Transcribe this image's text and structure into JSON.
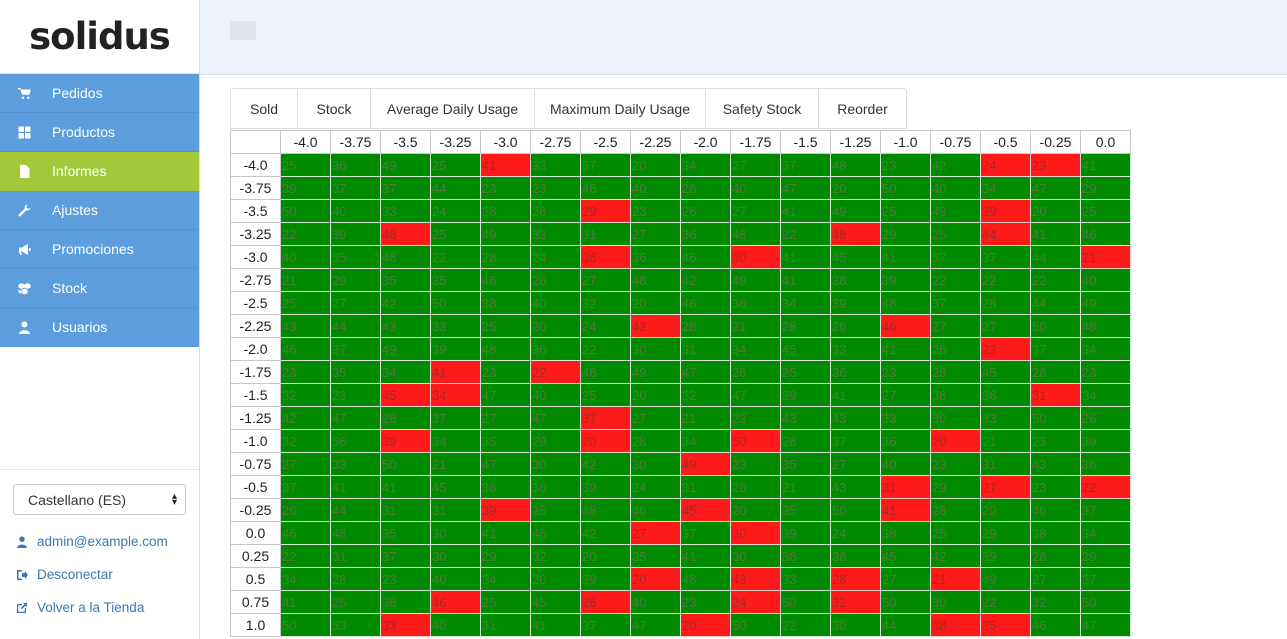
{
  "brand": {
    "logo_text": "solidus"
  },
  "nav": {
    "items": [
      {
        "label": "Pedidos",
        "icon": "cart-icon",
        "active": false
      },
      {
        "label": "Productos",
        "icon": "th-large-icon",
        "active": false
      },
      {
        "label": "Informes",
        "icon": "file-icon",
        "active": true
      },
      {
        "label": "Ajustes",
        "icon": "wrench-icon",
        "active": false
      },
      {
        "label": "Promociones",
        "icon": "bullhorn-icon",
        "active": false
      },
      {
        "label": "Stock",
        "icon": "cubes-icon",
        "active": false
      },
      {
        "label": "Usuarios",
        "icon": "user-icon",
        "active": false
      }
    ]
  },
  "footer": {
    "locale_value": "Castellano (ES)",
    "user_email": "admin@example.com",
    "logout_label": "Desconectar",
    "store_label": "Volver a la Tienda"
  },
  "tabs": [
    "Sold",
    "Stock",
    "Average Daily Usage",
    "Maximum Daily Usage",
    "Safety Stock",
    "Reorder"
  ],
  "colors": {
    "sidebar_blue": "#5b9ddd",
    "active_green": "#a3c93a",
    "cell_green": "#008a00",
    "cell_red": "#ff1a1a"
  },
  "chart_data": {
    "type": "heatmap",
    "columns": [
      "-4.0",
      "-3.75",
      "-3.5",
      "-3.25",
      "-3.0",
      "-2.75",
      "-2.5",
      "-2.25",
      "-2.0",
      "-1.75",
      "-1.5",
      "-1.25",
      "-1.0",
      "-0.75",
      "-0.5",
      "-0.25",
      "0.0"
    ],
    "rows": [
      {
        "label": "-4.0",
        "values": [
          25,
          36,
          49,
          25,
          41,
          33,
          37,
          20,
          34,
          27,
          37,
          48,
          23,
          42,
          24,
          23,
          41
        ],
        "red": [
          4,
          14,
          15
        ]
      },
      {
        "label": "-3.75",
        "values": [
          39,
          37,
          37,
          44,
          23,
          23,
          46,
          40,
          28,
          40,
          47,
          20,
          50,
          40,
          34,
          47,
          29
        ],
        "red": []
      },
      {
        "label": "-3.5",
        "values": [
          50,
          40,
          33,
          24,
          38,
          26,
          29,
          23,
          26,
          27,
          41,
          49,
          25,
          49,
          39,
          20,
          25
        ],
        "red": [
          6,
          14
        ]
      },
      {
        "label": "-3.25",
        "values": [
          22,
          39,
          48,
          25,
          49,
          33,
          31,
          27,
          36,
          48,
          22,
          48,
          29,
          25,
          44,
          41,
          46
        ],
        "red": [
          2,
          11,
          14
        ]
      },
      {
        "label": "-3.0",
        "values": [
          40,
          35,
          48,
          22,
          28,
          24,
          36,
          36,
          46,
          30,
          41,
          45,
          41,
          37,
          37,
          44,
          21
        ],
        "red": [
          6,
          9,
          16
        ]
      },
      {
        "label": "-2.75",
        "values": [
          21,
          29,
          35,
          35,
          46,
          26,
          27,
          48,
          42,
          49,
          41,
          38,
          39,
          22,
          22,
          22,
          40
        ],
        "red": []
      },
      {
        "label": "-2.5",
        "values": [
          25,
          27,
          42,
          50,
          38,
          40,
          32,
          20,
          46,
          36,
          34,
          39,
          48,
          37,
          28,
          44,
          49
        ],
        "red": []
      },
      {
        "label": "-2.25",
        "values": [
          43,
          44,
          43,
          33,
          25,
          30,
          24,
          43,
          28,
          21,
          28,
          26,
          46,
          27,
          27,
          50,
          48
        ],
        "red": [
          7,
          12
        ]
      },
      {
        "label": "-2.0",
        "values": [
          46,
          37,
          49,
          39,
          48,
          36,
          22,
          30,
          31,
          34,
          45,
          33,
          41,
          26,
          23,
          37,
          34
        ],
        "red": [
          14
        ]
      },
      {
        "label": "-1.75",
        "values": [
          23,
          35,
          34,
          41,
          23,
          22,
          48,
          49,
          47,
          26,
          25,
          36,
          33,
          28,
          45,
          28,
          23
        ],
        "red": [
          3,
          5
        ]
      },
      {
        "label": "-1.5",
        "values": [
          32,
          23,
          45,
          34,
          47,
          40,
          25,
          20,
          32,
          47,
          39,
          41,
          27,
          38,
          36,
          31,
          34
        ],
        "red": [
          2,
          3,
          15
        ]
      },
      {
        "label": "-1.25",
        "values": [
          42,
          47,
          28,
          37,
          27,
          47,
          37,
          27,
          21,
          23,
          43,
          43,
          33,
          30,
          33,
          50,
          26
        ],
        "red": [
          6
        ]
      },
      {
        "label": "-1.0",
        "values": [
          32,
          36,
          39,
          34,
          35,
          29,
          20,
          28,
          34,
          50,
          28,
          37,
          36,
          20,
          21,
          23,
          39
        ],
        "red": [
          2,
          6,
          9,
          13
        ]
      },
      {
        "label": "-0.75",
        "values": [
          27,
          33,
          50,
          21,
          47,
          30,
          42,
          30,
          49,
          23,
          35,
          27,
          40,
          23,
          31,
          43,
          36
        ],
        "red": [
          8
        ]
      },
      {
        "label": "-0.5",
        "values": [
          37,
          41,
          41,
          45,
          36,
          36,
          39,
          24,
          31,
          26,
          21,
          43,
          31,
          29,
          27,
          23,
          22
        ],
        "red": [
          12,
          14,
          16
        ]
      },
      {
        "label": "-0.25",
        "values": [
          26,
          44,
          31,
          31,
          39,
          35,
          48,
          46,
          45,
          30,
          35,
          50,
          41,
          38,
          20,
          46,
          37
        ],
        "red": [
          4,
          8,
          12
        ]
      },
      {
        "label": "0.0",
        "values": [
          46,
          48,
          35,
          30,
          41,
          46,
          42,
          27,
          37,
          30,
          39,
          24,
          38,
          25,
          29,
          38,
          34
        ],
        "red": [
          7,
          9
        ]
      },
      {
        "label": "0.25",
        "values": [
          22,
          31,
          37,
          30,
          29,
          32,
          20,
          35,
          41,
          30,
          38,
          38,
          45,
          42,
          39,
          28,
          39
        ],
        "red": []
      },
      {
        "label": "0.5",
        "values": [
          34,
          28,
          23,
          40,
          34,
          20,
          39,
          20,
          48,
          43,
          33,
          28,
          27,
          21,
          49,
          27,
          37
        ],
        "red": [
          7,
          9,
          11,
          13
        ]
      },
      {
        "label": "0.75",
        "values": [
          41,
          25,
          38,
          46,
          25,
          45,
          26,
          40,
          23,
          24,
          50,
          32,
          50,
          30,
          22,
          32,
          50
        ],
        "red": [
          3,
          6,
          9,
          11
        ]
      },
      {
        "label": "1.0",
        "values": [
          50,
          33,
          33,
          40,
          31,
          41,
          37,
          47,
          20,
          50,
          22,
          30,
          44,
          38,
          35,
          46,
          47
        ],
        "red": [
          2,
          8,
          13,
          14
        ]
      }
    ]
  }
}
